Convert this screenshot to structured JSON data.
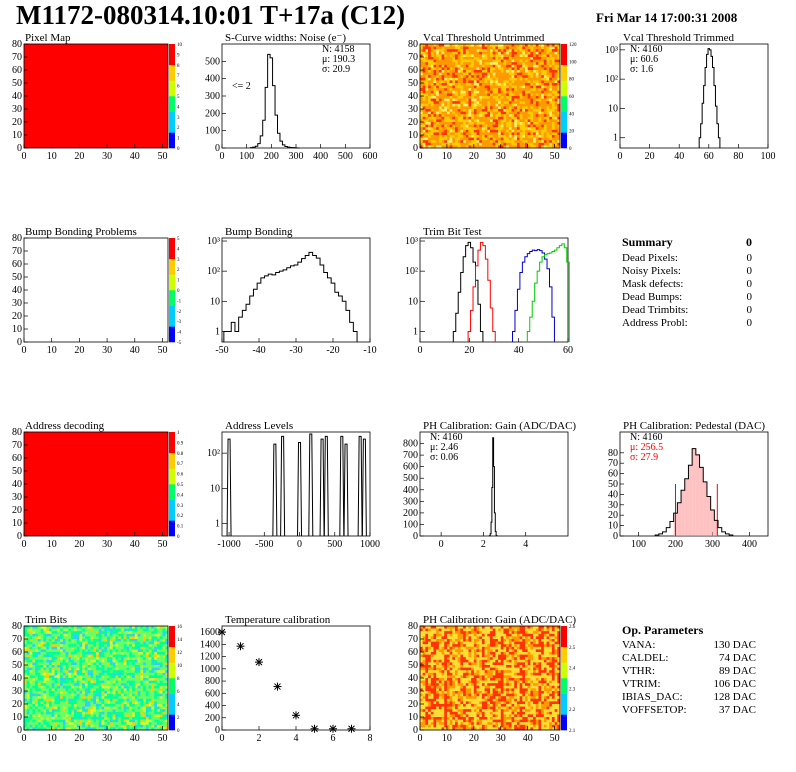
{
  "header": {
    "title": "M1172-080314.10:01 T+17a (C12)",
    "date": "Fri Mar 14 17:00:31 2008"
  },
  "colors": {
    "red": "#ff0000",
    "green": "#00cc00",
    "blue": "#0000cc",
    "black": "#000000"
  },
  "chart_data": [
    {
      "id": "pixel_map",
      "type": "heatmap",
      "title": "Pixel Map",
      "xlim": [
        0,
        52
      ],
      "ylim": [
        0,
        80
      ],
      "x_ticks": [
        "0",
        "10",
        "20",
        "30",
        "40",
        "50"
      ],
      "y_ticks": [
        "0",
        "10",
        "20",
        "30",
        "40",
        "50",
        "60",
        "70",
        "80"
      ],
      "zlim": [
        0,
        10
      ],
      "z_ticks": [
        "0",
        "1",
        "2",
        "3",
        "4",
        "5",
        "6",
        "7",
        "8",
        "9",
        "10"
      ],
      "fill": "uniform",
      "value": 10
    },
    {
      "id": "scurve",
      "type": "histogram",
      "title": "S-Curve widths: Noise (e⁻)",
      "xlim": [
        0,
        600
      ],
      "ylim": [
        0,
        600
      ],
      "x_ticks": [
        "0",
        "100",
        "200",
        "300",
        "400",
        "500",
        "600"
      ],
      "y_ticks": [
        "0",
        "100",
        "200",
        "300",
        "400",
        "500"
      ],
      "stats": [
        "N: 4158",
        "μ: 190.3",
        "σ: 20.9"
      ],
      "annotation": "<= 2",
      "x": [
        120,
        130,
        140,
        150,
        160,
        170,
        180,
        190,
        200,
        210,
        220,
        230,
        240,
        250,
        260,
        270,
        280,
        290,
        300,
        310
      ],
      "values": [
        2,
        5,
        10,
        25,
        70,
        160,
        350,
        540,
        520,
        360,
        190,
        85,
        40,
        18,
        9,
        5,
        3,
        2,
        1,
        0
      ]
    },
    {
      "id": "vcal_untrimmed",
      "type": "heatmap",
      "title": "Vcal Threshold Untrimmed",
      "xlim": [
        0,
        52
      ],
      "ylim": [
        0,
        80
      ],
      "x_ticks": [
        "0",
        "10",
        "20",
        "30",
        "40",
        "50"
      ],
      "y_ticks": [
        "0",
        "10",
        "20",
        "30",
        "40",
        "50",
        "60",
        "70",
        "80"
      ],
      "z_ticks": [
        "0",
        "20",
        "40",
        "60",
        "80",
        "100",
        "120"
      ],
      "fill": "noise-orange"
    },
    {
      "id": "vcal_trimmed",
      "type": "histogram",
      "title": "Vcal Threshold Trimmed",
      "log_y": true,
      "xlim": [
        0,
        100
      ],
      "x_ticks": [
        "0",
        "20",
        "40",
        "60",
        "80",
        "100"
      ],
      "y_ticks": [
        "1",
        "10",
        "10²",
        "10³"
      ],
      "stats": [
        "N: 4160",
        "μ: 60.6",
        "σ: 1.6"
      ],
      "x": [
        54,
        55,
        56,
        57,
        58,
        59,
        60,
        61,
        62,
        63,
        64,
        65,
        66,
        67
      ],
      "values": [
        1,
        3,
        15,
        60,
        250,
        700,
        1100,
        1000,
        600,
        250,
        60,
        12,
        3,
        1
      ]
    },
    {
      "id": "bump_problems",
      "type": "heatmap",
      "title": "Bump Bonding Problems",
      "xlim": [
        0,
        52
      ],
      "ylim": [
        0,
        80
      ],
      "x_ticks": [
        "0",
        "10",
        "20",
        "30",
        "40",
        "50"
      ],
      "y_ticks": [
        "0",
        "10",
        "20",
        "30",
        "40",
        "50",
        "60",
        "70",
        "80"
      ],
      "z_ticks": [
        "-5",
        "-4",
        "-3",
        "-2",
        "-1",
        "0",
        "1",
        "2",
        "3",
        "4",
        "5"
      ],
      "fill": "empty"
    },
    {
      "id": "bump_bonding",
      "type": "histogram",
      "title": "Bump Bonding",
      "log_y": true,
      "xlim": [
        -50,
        -10
      ],
      "x_ticks": [
        "-50",
        "-40",
        "-30",
        "-20",
        "-10"
      ],
      "y_ticks": [
        "1",
        "10",
        "10²",
        "10³"
      ],
      "x": [
        -49,
        -48,
        -47,
        -46,
        -45,
        -44,
        -43,
        -42,
        -41,
        -40,
        -39,
        -38,
        -37,
        -36,
        -35,
        -34,
        -33,
        -32,
        -31,
        -30,
        -29,
        -28,
        -27,
        -26,
        -25,
        -24,
        -23,
        -22,
        -21,
        -20,
        -19,
        -18,
        -17,
        -16,
        -15,
        -14
      ],
      "values": [
        1,
        1,
        2,
        1,
        3,
        5,
        8,
        15,
        25,
        40,
        60,
        70,
        80,
        75,
        90,
        100,
        110,
        130,
        150,
        160,
        200,
        260,
        330,
        420,
        330,
        270,
        160,
        90,
        60,
        40,
        20,
        15,
        10,
        5,
        2,
        1
      ]
    },
    {
      "id": "trim_bit_test",
      "type": "histogram",
      "title": "Trim Bit Test",
      "log_y": true,
      "xlim": [
        0,
        60
      ],
      "x_ticks": [
        "0",
        "20",
        "40",
        "60"
      ],
      "y_ticks": [
        "1",
        "10",
        "10²",
        "10³"
      ],
      "series": [
        {
          "color": "#000000",
          "x": [
            14,
            15,
            16,
            17,
            18,
            19,
            20,
            21,
            22,
            23,
            24,
            25
          ],
          "values": [
            1,
            4,
            20,
            90,
            300,
            700,
            900,
            600,
            200,
            50,
            8,
            1
          ]
        },
        {
          "color": "#ff0000",
          "x": [
            20,
            21,
            22,
            23,
            24,
            25,
            26,
            27,
            28,
            29,
            30
          ],
          "values": [
            1,
            5,
            30,
            150,
            500,
            900,
            700,
            250,
            50,
            6,
            1
          ]
        },
        {
          "color": "#0000cc",
          "x": [
            38,
            39,
            40,
            41,
            42,
            43,
            44,
            45,
            46,
            47,
            48,
            49,
            50,
            51,
            52,
            53,
            54
          ],
          "values": [
            1,
            5,
            25,
            90,
            200,
            300,
            380,
            450,
            500,
            480,
            520,
            480,
            400,
            250,
            120,
            30,
            3
          ]
        },
        {
          "color": "#00cc00",
          "x": [
            44,
            45,
            46,
            47,
            48,
            49,
            50,
            51,
            52,
            53,
            54,
            55,
            56,
            57,
            58,
            59,
            60
          ],
          "values": [
            1,
            3,
            10,
            40,
            100,
            200,
            300,
            350,
            380,
            400,
            450,
            500,
            600,
            700,
            800,
            600,
            200
          ]
        }
      ]
    },
    {
      "id": "address_decoding",
      "type": "heatmap",
      "title": "Address decoding",
      "xlim": [
        0,
        52
      ],
      "ylim": [
        0,
        80
      ],
      "x_ticks": [
        "0",
        "10",
        "20",
        "30",
        "40",
        "50"
      ],
      "y_ticks": [
        "0",
        "10",
        "20",
        "30",
        "40",
        "50",
        "60",
        "70",
        "80"
      ],
      "z_ticks": [
        "0",
        "0.1",
        "0.2",
        "0.3",
        "0.4",
        "0.5",
        "0.6",
        "0.7",
        "0.8",
        "0.9",
        "1"
      ],
      "fill": "uniform",
      "value": 1
    },
    {
      "id": "address_levels",
      "type": "histogram",
      "title": "Address Levels",
      "log_y": true,
      "xlim": [
        -1100,
        1000
      ],
      "x_ticks": [
        "-1000",
        "-500",
        "0",
        "500",
        "1000"
      ],
      "y_ticks": [
        "1",
        "10",
        "10²"
      ],
      "peaks": [
        -1000,
        -350,
        -240,
        0,
        160,
        320,
        380,
        600,
        660,
        860,
        920
      ],
      "peak_values": [
        250,
        180,
        300,
        200,
        350,
        250,
        300,
        300,
        180,
        300,
        250
      ]
    },
    {
      "id": "ph_gain",
      "type": "histogram",
      "title": "PH Calibration: Gain (ADC/DAC)",
      "xlim": [
        -1,
        6
      ],
      "ylim": [
        0,
        900
      ],
      "x_ticks": [
        "0",
        "2",
        "4"
      ],
      "y_ticks": [
        "0",
        "100",
        "200",
        "300",
        "400",
        "500",
        "600",
        "700",
        "800"
      ],
      "stats": [
        "N: 4160",
        "μ: 2.46",
        "σ: 0.06"
      ],
      "x": [
        2.3,
        2.34,
        2.38,
        2.42,
        2.46,
        2.5,
        2.54,
        2.58,
        2.62
      ],
      "values": [
        2,
        20,
        120,
        420,
        850,
        600,
        200,
        40,
        3
      ]
    },
    {
      "id": "ph_pedestal",
      "type": "histogram",
      "title": "PH Calibration: Pedestal (DAC)",
      "xlim": [
        50,
        450
      ],
      "ylim": [
        0,
        100
      ],
      "x_ticks": [
        "100",
        "200",
        "300",
        "400"
      ],
      "y_ticks": [
        "0",
        "10",
        "20",
        "30",
        "40",
        "50",
        "60",
        "70",
        "80"
      ],
      "stats": [
        "N: 4160",
        "μ: 256.5",
        "σ: 27.9"
      ],
      "stats_colors": [
        "#000000",
        "#ff0000",
        "#ff0000"
      ],
      "fit_range": [
        200,
        313
      ],
      "x": [
        150,
        160,
        170,
        180,
        190,
        200,
        210,
        220,
        230,
        240,
        250,
        260,
        270,
        280,
        290,
        300,
        310,
        320,
        330,
        340,
        350
      ],
      "values": [
        1,
        2,
        4,
        8,
        14,
        22,
        32,
        44,
        55,
        68,
        84,
        78,
        66,
        52,
        38,
        25,
        15,
        8,
        4,
        2,
        1
      ]
    },
    {
      "id": "trim_bits",
      "type": "heatmap",
      "title": "Trim Bits",
      "xlim": [
        0,
        52
      ],
      "ylim": [
        0,
        80
      ],
      "x_ticks": [
        "0",
        "10",
        "20",
        "30",
        "40",
        "50"
      ],
      "y_ticks": [
        "0",
        "10",
        "20",
        "30",
        "40",
        "50",
        "60",
        "70",
        "80"
      ],
      "z_ticks": [
        "0",
        "2",
        "4",
        "6",
        "8",
        "10",
        "12",
        "14",
        "16"
      ],
      "fill": "noise-green"
    },
    {
      "id": "temperature",
      "type": "scatter",
      "title": "Temperature calibration",
      "xlim": [
        0,
        8
      ],
      "ylim": [
        0,
        1700
      ],
      "x_ticks": [
        "0",
        "2",
        "4",
        "6",
        "8"
      ],
      "y_ticks": [
        "0",
        "200",
        "400",
        "600",
        "800",
        "1000",
        "1200",
        "1400",
        "1600"
      ],
      "x": [
        0,
        1,
        2,
        3,
        4,
        5,
        6,
        7
      ],
      "values": [
        1600,
        1370,
        1110,
        710,
        240,
        20,
        20,
        20
      ]
    },
    {
      "id": "ph_gain_map",
      "type": "heatmap",
      "title": "PH Calibration: Gain (ADC/DAC)",
      "xlim": [
        0,
        52
      ],
      "ylim": [
        0,
        80
      ],
      "x_ticks": [
        "0",
        "10",
        "20",
        "30",
        "40",
        "50"
      ],
      "y_ticks": [
        "0",
        "10",
        "20",
        "30",
        "40",
        "50",
        "60",
        "70",
        "80"
      ],
      "z_ticks": [
        "2.1",
        "2.2",
        "2.3",
        "2.4",
        "2.5",
        "2.6"
      ],
      "fill": "stripes"
    }
  ],
  "summary": {
    "title": "Summary",
    "total": "0",
    "rows": [
      {
        "label": "Dead Pixels:",
        "value": "0"
      },
      {
        "label": "Noisy Pixels:",
        "value": "0"
      },
      {
        "label": "Mask defects:",
        "value": "0"
      },
      {
        "label": "Dead Bumps:",
        "value": "0"
      },
      {
        "label": "Dead Trimbits:",
        "value": "0"
      },
      {
        "label": "Address Probl:",
        "value": "0"
      }
    ]
  },
  "op_params": {
    "title": "Op. Parameters",
    "rows": [
      {
        "label": "VANA:",
        "value": "130 DAC"
      },
      {
        "label": "CALDEL:",
        "value": "74 DAC"
      },
      {
        "label": "VTHR:",
        "value": "89 DAC"
      },
      {
        "label": "VTRIM:",
        "value": "106 DAC"
      },
      {
        "label": "IBIAS_DAC:",
        "value": "128 DAC"
      },
      {
        "label": "VOFFSETOP:",
        "value": "37 DAC"
      }
    ]
  }
}
